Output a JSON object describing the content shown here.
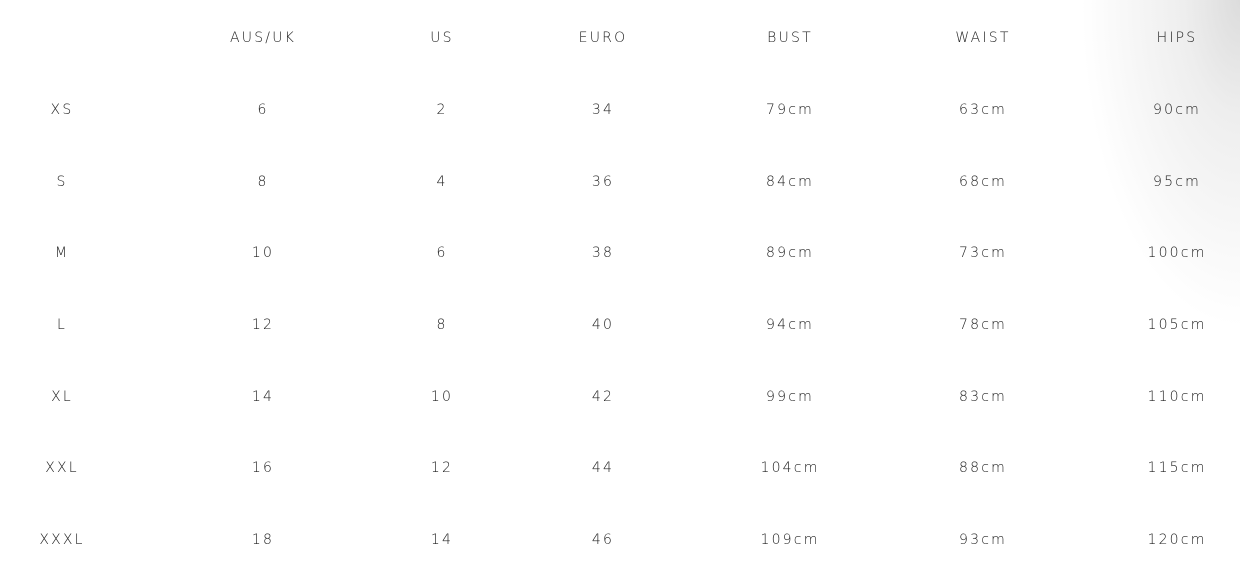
{
  "table": {
    "headers": [
      "",
      "AUS/UK",
      "US",
      "EURO",
      "BUST",
      "WAIST",
      "HIPS"
    ],
    "rows": [
      [
        "XS",
        "6",
        "2",
        "34",
        "79cm",
        "63cm",
        "90cm"
      ],
      [
        "S",
        "8",
        "4",
        "36",
        "84cm",
        "68cm",
        "95cm"
      ],
      [
        "M",
        "10",
        "6",
        "38",
        "89cm",
        "73cm",
        "100cm"
      ],
      [
        "L",
        "12",
        "8",
        "40",
        "94cm",
        "78cm",
        "105cm"
      ],
      [
        "XL",
        "14",
        "10",
        "42",
        "99cm",
        "83cm",
        "110cm"
      ],
      [
        "XXL",
        "16",
        "12",
        "44",
        "104cm",
        "88cm",
        "115cm"
      ],
      [
        "XXXL",
        "18",
        "14",
        "46",
        "109cm",
        "93cm",
        "120cm"
      ]
    ]
  }
}
